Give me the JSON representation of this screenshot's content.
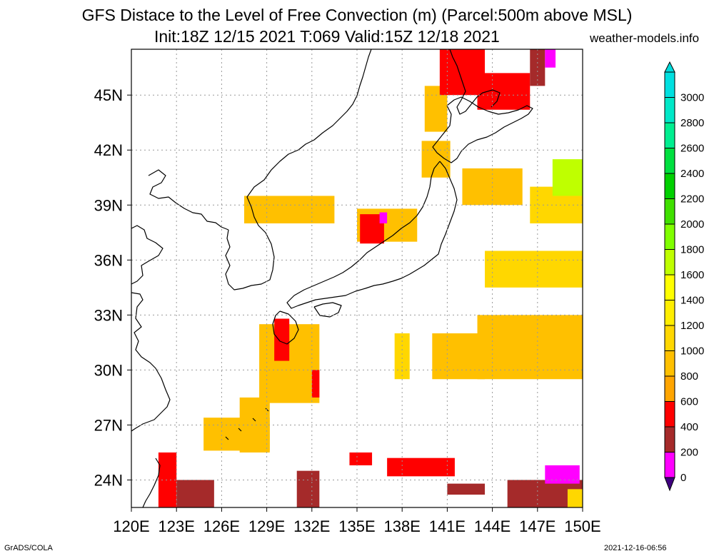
{
  "title": "GFS Distace to the Level of Free Convection (m) (Parcel:500m above MSL)",
  "subtitle": "Init:18Z 12/15 2021 T:069 Valid:15Z 12/18 2021",
  "source": "weather-models.info",
  "footer_left": "GrADS/COLA",
  "footer_right": "2021-12-16-06:56",
  "chart_data": {
    "type": "heatmap",
    "variable": "Distance to LFC (m)",
    "x_ticks": [
      "120E",
      "123E",
      "126E",
      "129E",
      "132E",
      "135E",
      "138E",
      "141E",
      "144E",
      "147E",
      "150E"
    ],
    "y_ticks": [
      "24N",
      "27N",
      "30N",
      "33N",
      "36N",
      "39N",
      "42N",
      "45N"
    ],
    "x_range": [
      120,
      150
    ],
    "y_range": [
      22.5,
      47.5
    ],
    "grid": true,
    "colorbar": {
      "labels": [
        "0",
        "200",
        "400",
        "600",
        "800",
        "1000",
        "1200",
        "1400",
        "1600",
        "1800",
        "2000",
        "2200",
        "2400",
        "2600",
        "2800",
        "3000"
      ],
      "colors": [
        "#ff00ff",
        "#a52a2a",
        "#ff0000",
        "#ffa500",
        "#ffc000",
        "#ffd700",
        "#ffee00",
        "#ffff00",
        "#bfff00",
        "#80ff00",
        "#40e000",
        "#00d000",
        "#00e040",
        "#00ee90",
        "#00e8c8",
        "#00e0e0"
      ],
      "under_color": "#3f007f",
      "over_color": "#00dcdc"
    },
    "patches": [
      {
        "lon": [
          128.5,
          132.5
        ],
        "lat": [
          28.2,
          32.5
        ],
        "value": 800
      },
      {
        "lon": [
          127.2,
          129.2
        ],
        "lat": [
          25.5,
          28.5
        ],
        "value": 800
      },
      {
        "lon": [
          124.8,
          129.2
        ],
        "lat": [
          25.6,
          27.4
        ],
        "value": 800
      },
      {
        "lon": [
          129.5,
          130.5
        ],
        "lat": [
          30.5,
          32.8
        ],
        "value": 500
      },
      {
        "lon": [
          132.0,
          132.5
        ],
        "lat": [
          28.5,
          30.0
        ],
        "value": 500
      },
      {
        "lon": [
          127.5,
          133.5
        ],
        "lat": [
          38.0,
          39.5
        ],
        "value": 800
      },
      {
        "lon": [
          135.0,
          139.0
        ],
        "lat": [
          37.0,
          38.8
        ],
        "value": 800
      },
      {
        "lon": [
          135.2,
          136.8
        ],
        "lat": [
          36.9,
          38.5
        ],
        "value": 500
      },
      {
        "lon": [
          136.5,
          137.0
        ],
        "lat": [
          38.0,
          38.6
        ],
        "value": 100
      },
      {
        "lon": [
          139.5,
          141.0
        ],
        "lat": [
          43.0,
          45.5
        ],
        "value": 800
      },
      {
        "lon": [
          139.3,
          141.2
        ],
        "lat": [
          40.5,
          42.5
        ],
        "value": 800
      },
      {
        "lon": [
          142.0,
          146.0
        ],
        "lat": [
          39.0,
          41.0
        ],
        "value": 900
      },
      {
        "lon": [
          146.5,
          150.0
        ],
        "lat": [
          38.0,
          40.0
        ],
        "value": 1000
      },
      {
        "lon": [
          143.5,
          150.0
        ],
        "lat": [
          34.5,
          36.5
        ],
        "value": 1000
      },
      {
        "lon": [
          140.0,
          143.5
        ],
        "lat": [
          29.5,
          32.0
        ],
        "value": 900
      },
      {
        "lon": [
          143.0,
          150.0
        ],
        "lat": [
          29.5,
          33.0
        ],
        "value": 900
      },
      {
        "lon": [
          137.5,
          138.5
        ],
        "lat": [
          29.5,
          32.0
        ],
        "value": 1000
      },
      {
        "lon": [
          148.0,
          150.0
        ],
        "lat": [
          39.5,
          41.5
        ],
        "value": 1700
      },
      {
        "lon": [
          140.5,
          143.5
        ],
        "lat": [
          45.0,
          47.5
        ],
        "value": 500
      },
      {
        "lon": [
          143.0,
          146.5
        ],
        "lat": [
          44.2,
          46.2
        ],
        "value": 500
      },
      {
        "lon": [
          146.5,
          147.5
        ],
        "lat": [
          45.5,
          47.5
        ],
        "value": 300
      },
      {
        "lon": [
          147.5,
          148.2
        ],
        "lat": [
          46.5,
          47.5
        ],
        "value": 100
      },
      {
        "lon": [
          121.8,
          123.0
        ],
        "lat": [
          22.5,
          25.5
        ],
        "value": 500
      },
      {
        "lon": [
          123.0,
          125.5
        ],
        "lat": [
          22.5,
          24.0
        ],
        "value": 300
      },
      {
        "lon": [
          131.0,
          132.5
        ],
        "lat": [
          22.5,
          24.5
        ],
        "value": 300
      },
      {
        "lon": [
          134.5,
          136.0
        ],
        "lat": [
          24.8,
          25.5
        ],
        "value": 500
      },
      {
        "lon": [
          137.0,
          141.5
        ],
        "lat": [
          24.2,
          25.2
        ],
        "value": 500
      },
      {
        "lon": [
          141.0,
          143.5
        ],
        "lat": [
          23.2,
          23.8
        ],
        "value": 300
      },
      {
        "lon": [
          145.0,
          150.0
        ],
        "lat": [
          22.5,
          24.0
        ],
        "value": 300
      },
      {
        "lon": [
          147.5,
          149.8
        ],
        "lat": [
          23.8,
          24.8
        ],
        "value": 100
      },
      {
        "lon": [
          149.0,
          150.0
        ],
        "lat": [
          22.5,
          23.5
        ],
        "value": 1000
      }
    ]
  }
}
